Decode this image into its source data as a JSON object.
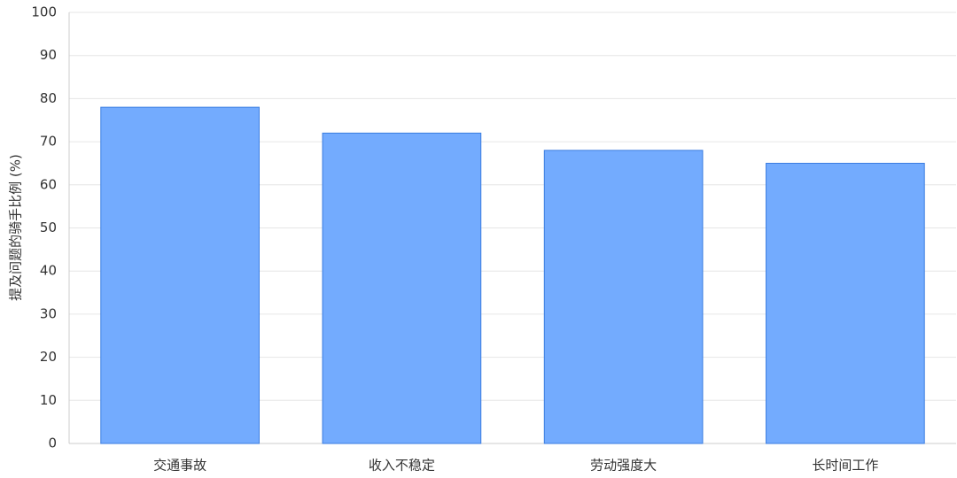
{
  "chart_data": {
    "type": "bar",
    "ylabel": "提及问题的骑手比例 (%)",
    "categories": [
      "交通事故",
      "收入不稳定",
      "劳动强度大",
      "长时间工作"
    ],
    "values": [
      78,
      72,
      68,
      65
    ],
    "color": "#6ea8fe",
    "ylim": [
      0,
      100
    ],
    "yticks": [
      0,
      10,
      20,
      30,
      40,
      50,
      60,
      70,
      80,
      90,
      100
    ],
    "grid": true
  }
}
